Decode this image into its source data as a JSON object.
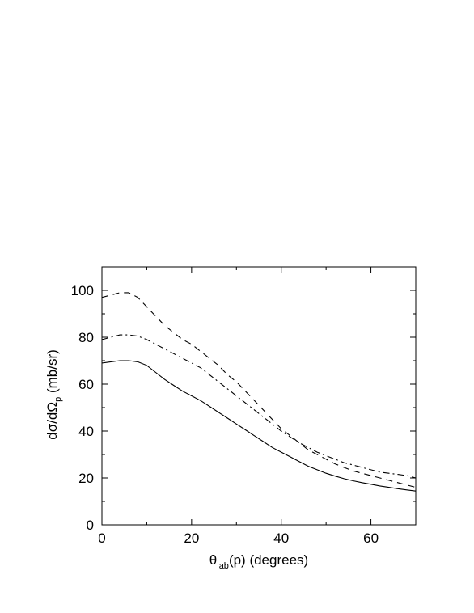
{
  "chart_data": {
    "type": "line",
    "title": "",
    "xlabel": {
      "main": "θ",
      "sub": "lab",
      "rest": "(p)  (degrees)"
    },
    "ylabel": {
      "main": "dσ/dΩ",
      "sub": "p",
      "rest": "  (mb/sr)"
    },
    "xlim": [
      0,
      70
    ],
    "ylim": [
      0,
      110
    ],
    "xticks": [
      0,
      20,
      40,
      60
    ],
    "yticks": [
      0,
      20,
      40,
      60,
      80,
      100
    ],
    "grid": false,
    "series": [
      {
        "style": "dashed",
        "x": [
          0,
          2,
          4,
          6,
          8,
          10,
          12,
          14,
          16,
          18,
          20,
          22,
          24,
          26,
          28,
          30,
          32,
          34,
          36,
          38,
          40,
          42,
          44,
          46,
          48,
          50,
          52,
          54,
          56,
          58,
          60,
          62,
          64,
          66,
          68,
          70
        ],
        "y": [
          97,
          98,
          99,
          99,
          97,
          93,
          89,
          85,
          82,
          79,
          77,
          74,
          71,
          68,
          64,
          61,
          57,
          53,
          49,
          45,
          41,
          38,
          35,
          32,
          30,
          28,
          26,
          24.5,
          23,
          22,
          21,
          20,
          19,
          18,
          17,
          16
        ]
      },
      {
        "style": "dash-dot",
        "x": [
          0,
          2,
          4,
          6,
          8,
          10,
          12,
          14,
          16,
          18,
          20,
          22,
          24,
          26,
          28,
          30,
          32,
          34,
          36,
          38,
          40,
          42,
          44,
          46,
          48,
          50,
          52,
          54,
          56,
          58,
          60,
          62,
          64,
          66,
          68,
          70
        ],
        "y": [
          79,
          80,
          81,
          81,
          80.5,
          79,
          77,
          75,
          73,
          71,
          69,
          67,
          64,
          61,
          58,
          55,
          52,
          49,
          46,
          43,
          40,
          37.5,
          35,
          33,
          31,
          29.5,
          28,
          26.5,
          25.5,
          24.5,
          23.5,
          22.5,
          22,
          21.5,
          21,
          20
        ]
      },
      {
        "style": "solid",
        "x": [
          0,
          2,
          4,
          6,
          8,
          10,
          12,
          14,
          16,
          18,
          20,
          22,
          24,
          26,
          28,
          30,
          32,
          34,
          36,
          38,
          40,
          42,
          44,
          46,
          48,
          50,
          52,
          54,
          56,
          58,
          60,
          62,
          64,
          66,
          68,
          70
        ],
        "y": [
          69,
          69.5,
          70,
          70,
          69.5,
          68,
          65,
          62,
          59.5,
          57,
          55,
          53,
          50.5,
          48,
          45.5,
          43,
          40.5,
          38,
          35.5,
          33,
          31,
          29,
          27,
          25,
          23.5,
          22,
          20.8,
          19.7,
          18.8,
          18,
          17.3,
          16.6,
          16,
          15.4,
          14.9,
          14.4
        ]
      }
    ]
  }
}
